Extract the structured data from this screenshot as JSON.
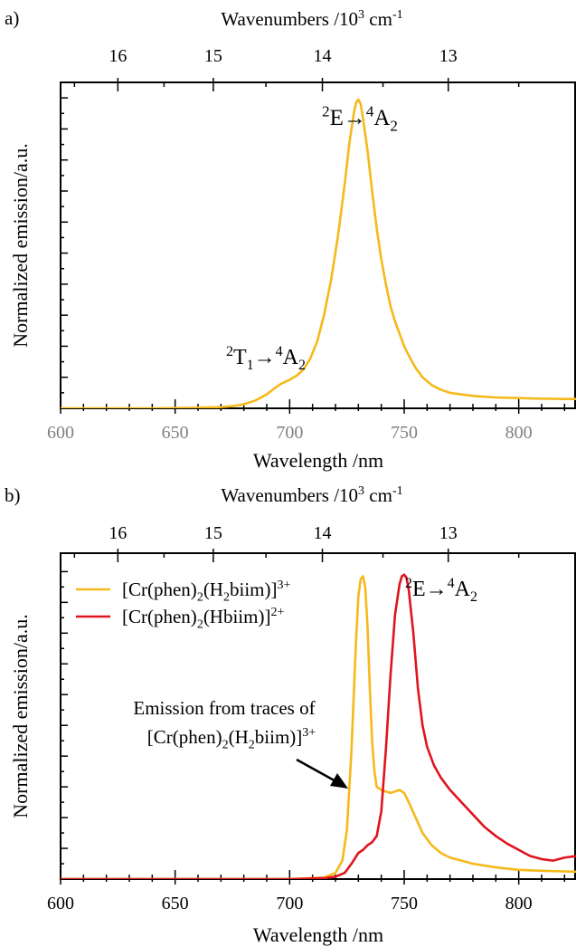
{
  "chart_data": [
    {
      "panel_label": "a)",
      "type": "line",
      "xlabel": "Wavelength /nm",
      "ylabel": "Normalized emission/a.u.",
      "top_axis": {
        "label_parts": [
          "Wavenumbers /10",
          "3",
          " cm",
          "-1"
        ],
        "ticks": [
          16,
          15,
          14,
          13
        ]
      },
      "xlim": [
        600,
        825
      ],
      "ylim": [
        0,
        1.05
      ],
      "xticks": [
        600,
        650,
        700,
        750,
        800
      ],
      "grid": false,
      "colors": {
        "series1": "#f5b91a"
      },
      "series": [
        {
          "x": [
            600,
            620,
            640,
            660,
            670,
            675,
            680,
            685,
            690,
            693,
            696,
            700,
            703,
            706,
            709,
            712,
            715,
            718,
            721,
            724,
            726,
            728,
            729,
            730,
            731,
            732,
            734,
            736,
            738,
            740,
            742,
            744,
            746,
            748,
            750,
            752,
            755,
            758,
            762,
            766,
            770,
            780,
            790,
            800,
            810,
            820,
            825
          ],
          "y": [
            0,
            0,
            0,
            0.002,
            0.004,
            0.007,
            0.013,
            0.025,
            0.045,
            0.062,
            0.078,
            0.092,
            0.105,
            0.125,
            0.16,
            0.215,
            0.3,
            0.41,
            0.55,
            0.72,
            0.85,
            0.95,
            0.985,
            0.995,
            0.98,
            0.935,
            0.83,
            0.7,
            0.58,
            0.48,
            0.4,
            0.33,
            0.28,
            0.24,
            0.2,
            0.17,
            0.13,
            0.1,
            0.075,
            0.06,
            0.05,
            0.04,
            0.035,
            0.033,
            0.031,
            0.03,
            0.03
          ]
        }
      ],
      "annotations": [
        {
          "id": "main",
          "parts": [
            [
              "2",
              "sup"
            ],
            [
              "E→",
              ""
            ],
            [
              "4",
              "sup"
            ],
            [
              "A",
              ""
            ],
            [
              "2",
              "sub"
            ]
          ]
        },
        {
          "id": "minor",
          "parts": [
            [
              "2",
              "sup"
            ],
            [
              "T",
              ""
            ],
            [
              "1",
              "sub"
            ],
            [
              "→",
              ""
            ],
            [
              "4",
              "sup"
            ],
            [
              "A",
              ""
            ],
            [
              "2",
              "sub"
            ]
          ]
        }
      ]
    },
    {
      "panel_label": "b)",
      "type": "line",
      "xlabel": "Wavelength /nm",
      "ylabel": "Normalized emission/a.u.",
      "top_axis": {
        "label_parts": [
          "Wavenumbers /10",
          "3",
          " cm",
          "-1"
        ],
        "ticks": [
          16,
          15,
          14,
          13
        ]
      },
      "xlim": [
        600,
        825
      ],
      "ylim": [
        0,
        1.06
      ],
      "xticks": [
        600,
        650,
        700,
        750,
        800
      ],
      "grid": false,
      "legend_placement": "upper-left",
      "colors": {
        "series1": "#f5b91a",
        "series2": "#e0141e",
        "arrow": "#000000"
      },
      "series": [
        {
          "legend_parts": [
            [
              "[Cr(phen)",
              ""
            ],
            [
              "2",
              "sub"
            ],
            [
              "(H",
              ""
            ],
            [
              "2",
              "sub"
            ],
            [
              "biim)]",
              ""
            ],
            [
              "3+",
              "sup"
            ]
          ],
          "x": [
            600,
            700,
            715,
            720,
            723,
            725,
            727,
            729,
            730,
            731,
            732,
            733,
            734,
            735,
            736,
            737,
            738,
            740,
            742,
            744,
            746,
            748,
            750,
            752,
            755,
            758,
            762,
            766,
            770,
            780,
            790,
            800,
            810,
            820,
            825
          ],
          "y": [
            0,
            0,
            0.005,
            0.02,
            0.06,
            0.16,
            0.42,
            0.78,
            0.92,
            0.975,
            0.985,
            0.95,
            0.82,
            0.62,
            0.45,
            0.35,
            0.3,
            0.29,
            0.285,
            0.28,
            0.285,
            0.29,
            0.28,
            0.25,
            0.2,
            0.15,
            0.11,
            0.085,
            0.07,
            0.05,
            0.038,
            0.03,
            0.027,
            0.025,
            0.024
          ]
        },
        {
          "legend_parts": [
            [
              "[Cr(phen)",
              ""
            ],
            [
              "2",
              "sub"
            ],
            [
              "(Hbiim)]",
              ""
            ],
            [
              "2+",
              "sup"
            ]
          ],
          "x": [
            600,
            700,
            715,
            720,
            724,
            727,
            730,
            732,
            734,
            736,
            738,
            740,
            742,
            744,
            746,
            748,
            749,
            750,
            751,
            752,
            754,
            756,
            758,
            760,
            763,
            766,
            770,
            775,
            780,
            785,
            790,
            795,
            800,
            805,
            810,
            815,
            820,
            825
          ],
          "y": [
            0,
            0,
            0.003,
            0.008,
            0.02,
            0.05,
            0.085,
            0.095,
            0.11,
            0.12,
            0.14,
            0.22,
            0.42,
            0.66,
            0.86,
            0.96,
            0.985,
            0.99,
            0.98,
            0.94,
            0.8,
            0.62,
            0.5,
            0.43,
            0.37,
            0.33,
            0.29,
            0.25,
            0.21,
            0.17,
            0.14,
            0.115,
            0.095,
            0.075,
            0.065,
            0.06,
            0.07,
            0.075
          ]
        }
      ],
      "annotations": [
        {
          "id": "main",
          "parts": [
            [
              "2",
              "sup"
            ],
            [
              "E→",
              ""
            ],
            [
              "4",
              "sup"
            ],
            [
              "A",
              ""
            ],
            [
              "2",
              "sub"
            ]
          ]
        },
        {
          "id": "note_line1",
          "parts": [
            [
              "Emission from traces of",
              ""
            ]
          ]
        },
        {
          "id": "note_line2",
          "parts": [
            [
              "[Cr(phen)",
              ""
            ],
            [
              "2",
              "sub"
            ],
            [
              "(H",
              ""
            ],
            [
              "2",
              "sub"
            ],
            [
              "biim)]",
              ""
            ],
            [
              "3+",
              "sup"
            ]
          ]
        }
      ]
    }
  ]
}
